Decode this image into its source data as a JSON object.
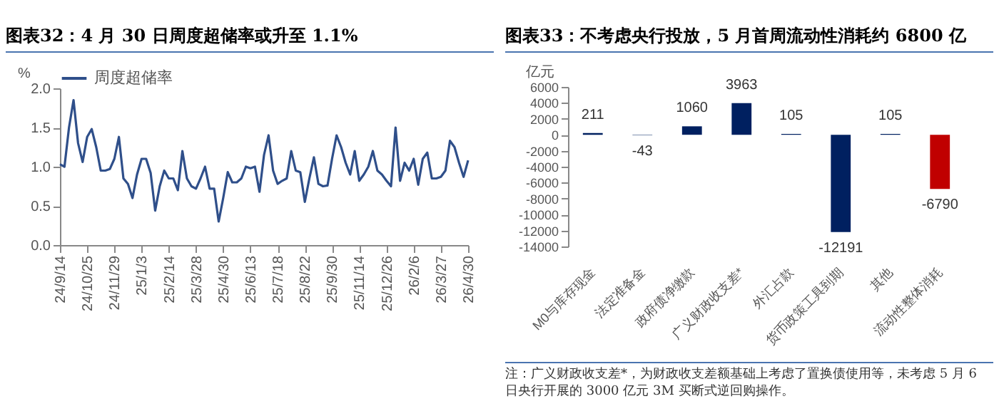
{
  "chart_data": [
    {
      "type": "line",
      "title": "图表32：4 月 30 日周度超储率或升至 1.1%",
      "ylabel": "%",
      "categories": [
        "24/9/14",
        null,
        null,
        null,
        null,
        null,
        "24/10/25",
        null,
        null,
        null,
        null,
        null,
        "24/11/29",
        null,
        null,
        null,
        null,
        null,
        "25/1/3",
        null,
        null,
        null,
        null,
        null,
        "25/2/14",
        null,
        null,
        null,
        null,
        null,
        "25/3/28",
        null,
        null,
        null,
        null,
        null,
        "25/4/30",
        null,
        null,
        null,
        null,
        null,
        "25/6/13",
        null,
        null,
        null,
        null,
        null,
        "25/7/18",
        null,
        null,
        null,
        null,
        null,
        "25/8/22",
        null,
        null,
        null,
        null,
        null,
        "25/9/30",
        null,
        null,
        null,
        null,
        null,
        "25/11/14",
        null,
        null,
        null,
        null,
        null,
        "25/12/26",
        null,
        null,
        null,
        null,
        null,
        "26/2/6",
        null,
        null,
        null,
        null,
        null,
        "26/3/27",
        null,
        null,
        null,
        null,
        null,
        "26/4/30"
      ],
      "series": [
        {
          "name": "周度超储率",
          "color": "#2f4f8a",
          "values": [
            1.03,
            1.0,
            1.5,
            1.85,
            1.3,
            1.06,
            1.38,
            1.48,
            1.25,
            0.95,
            0.95,
            0.97,
            1.1,
            1.38,
            0.85,
            0.78,
            0.6,
            0.9,
            1.1,
            1.1,
            0.92,
            0.44,
            0.75,
            0.95,
            0.85,
            0.85,
            0.7,
            1.2,
            0.85,
            0.75,
            0.72,
            0.85,
            1.0,
            0.72,
            0.72,
            0.3,
            0.6,
            0.93,
            0.8,
            0.8,
            0.85,
            1.0,
            0.98,
            1.0,
            0.68,
            1.15,
            1.4,
            0.95,
            0.78,
            0.82,
            0.85,
            1.2,
            0.95,
            0.93,
            0.55,
            0.85,
            1.12,
            0.78,
            0.75,
            0.76,
            1.1,
            1.4,
            1.25,
            1.05,
            0.9,
            1.2,
            0.82,
            0.9,
            1.0,
            1.2,
            0.95,
            0.9,
            0.82,
            0.75,
            1.5,
            0.82,
            1.05,
            0.95,
            1.1,
            0.77,
            1.1,
            1.18,
            0.85,
            0.85,
            0.87,
            0.95,
            1.33,
            1.25,
            1.05,
            0.87,
            1.08
          ]
        }
      ],
      "ylim": [
        0,
        2
      ],
      "yticks": [
        {
          "value": 0,
          "label": "0.0"
        },
        {
          "value": 0.5,
          "label": "0.5"
        },
        {
          "value": 1,
          "label": "1.0"
        },
        {
          "value": 1.5,
          "label": "1.5"
        },
        {
          "value": 2,
          "label": "2.0"
        }
      ],
      "legend": "top",
      "grid": false
    },
    {
      "type": "bar",
      "title": "图表33：不考虑央行投放，5 月首周流动性消耗约 6800 亿",
      "ylabel": "亿元",
      "categories": [
        "M0与库存现金",
        "法定准备金",
        "政府债净缴款",
        "广义财政收支差*",
        "外汇占款",
        "货币政策工具到期",
        "其他",
        "流动性整体消耗"
      ],
      "values": [
        211,
        -43,
        1060,
        3963,
        105,
        -12191,
        105,
        -6790
      ],
      "colors": [
        "#002060",
        "#002060",
        "#002060",
        "#002060",
        "#002060",
        "#002060",
        "#002060",
        "#c00000"
      ],
      "ylim": [
        -14000,
        6000
      ],
      "yticks": [
        -14000,
        -12000,
        -10000,
        -8000,
        -6000,
        -4000,
        -2000,
        0,
        2000,
        4000,
        6000
      ],
      "data_labels": true,
      "grid": false,
      "annotations": [
        "注：广义财政收支差*，为财政收支差额基础上考虑了置换债使用等，未考虑 5 月 6 日央行开展的 3000 亿元 3M 买断式逆回购操作。"
      ]
    }
  ]
}
